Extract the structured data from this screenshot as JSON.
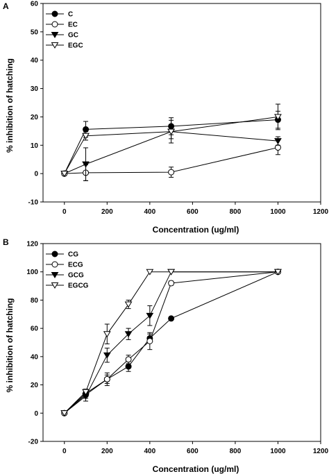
{
  "chart_data": [
    {
      "type": "line",
      "panel_label": "A",
      "xlabel": "Concentration (ug/ml)",
      "ylabel": "% inhibition of hatching",
      "xlim": [
        -100,
        1200
      ],
      "ylim": [
        -10,
        60
      ],
      "xticks": [
        0,
        200,
        400,
        600,
        800,
        1000,
        1200
      ],
      "yticks": [
        -10,
        0,
        10,
        20,
        30,
        40,
        50,
        60
      ],
      "legend_position": "top-left",
      "series": [
        {
          "name": "C",
          "marker": "circle-filled",
          "x": [
            0,
            100,
            500,
            1000
          ],
          "y": [
            0,
            15.6,
            16.7,
            19.0
          ],
          "err": [
            0.5,
            2.8,
            3.0,
            3.0
          ]
        },
        {
          "name": "EC",
          "marker": "circle-open",
          "x": [
            0,
            100,
            500,
            1000
          ],
          "y": [
            0,
            0.3,
            0.5,
            9.2
          ],
          "err": [
            0.5,
            2.8,
            1.8,
            2.5
          ]
        },
        {
          "name": "GC",
          "marker": "triangle-down-filled",
          "x": [
            0,
            100,
            500,
            1000
          ],
          "y": [
            0,
            3.3,
            14.8,
            11.5
          ],
          "err": [
            0.5,
            5.8,
            4.0,
            1.5
          ]
        },
        {
          "name": "EGC",
          "marker": "triangle-down-open",
          "x": [
            0,
            100,
            500,
            1000
          ],
          "y": [
            0,
            13.3,
            14.8,
            20.0
          ],
          "err": [
            0.5,
            1.5,
            2.5,
            4.5
          ]
        }
      ]
    },
    {
      "type": "line",
      "panel_label": "B",
      "xlabel": "Concentration (ug/ml)",
      "ylabel": "% inhibition of hatching",
      "xlim": [
        -100,
        1200
      ],
      "ylim": [
        -20,
        120
      ],
      "xticks": [
        0,
        200,
        400,
        600,
        800,
        1000,
        1200
      ],
      "yticks": [
        -20,
        0,
        20,
        40,
        60,
        80,
        100,
        120
      ],
      "legend_position": "top-left",
      "series": [
        {
          "name": "CG",
          "marker": "circle-filled",
          "x": [
            0,
            100,
            200,
            300,
            400,
            500,
            1000
          ],
          "y": [
            0,
            14,
            24,
            33,
            53,
            67,
            100
          ],
          "err": [
            0.5,
            2.5,
            3.0,
            3.5,
            3.0,
            1.0,
            0.5
          ]
        },
        {
          "name": "ECG",
          "marker": "circle-open",
          "x": [
            0,
            100,
            200,
            300,
            400,
            500,
            1000
          ],
          "y": [
            0,
            13,
            24,
            38,
            51,
            92,
            100
          ],
          "err": [
            0.5,
            2.5,
            4.5,
            3.0,
            6.0,
            1.5,
            0.5
          ]
        },
        {
          "name": "GCG",
          "marker": "triangle-down-filled",
          "x": [
            0,
            100,
            200,
            300,
            400,
            500,
            1000
          ],
          "y": [
            0,
            12,
            41,
            56,
            69,
            100,
            100
          ],
          "err": [
            0.5,
            3.5,
            5.0,
            4.0,
            7.0,
            0.5,
            0.5
          ]
        },
        {
          "name": "EGCG",
          "marker": "triangle-down-open",
          "x": [
            0,
            100,
            200,
            300,
            400,
            500,
            1000
          ],
          "y": [
            0,
            15,
            56,
            77,
            100,
            100,
            100
          ],
          "err": [
            0.5,
            2.0,
            7.0,
            3.0,
            0.5,
            0.5,
            0.5
          ]
        }
      ]
    }
  ]
}
